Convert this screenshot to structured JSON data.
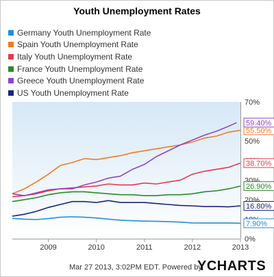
{
  "chart_data": {
    "type": "line",
    "title": "Youth Unemployment Rates",
    "xlabel": "",
    "ylabel": "",
    "x_ticks": [
      "2009",
      "2010",
      "2011",
      "2012",
      "2013"
    ],
    "x_range": [
      2008.25,
      2013.0
    ],
    "y_ticks": [
      "0%",
      "10%",
      "20%",
      "30%",
      "40%",
      "50%",
      "60%",
      "70%"
    ],
    "ylim": [
      0,
      70
    ],
    "grid": false,
    "legend": "top-left",
    "series": [
      {
        "name": "Germany Youth Unemployment Rate",
        "color": "#1f8fd6",
        "end_label": "7.90%",
        "points": [
          [
            2008.25,
            10.4
          ],
          [
            2008.5,
            10.0
          ],
          [
            2008.75,
            9.8
          ],
          [
            2009.0,
            10.3
          ],
          [
            2009.25,
            11.0
          ],
          [
            2009.5,
            11.2
          ],
          [
            2009.75,
            11.0
          ],
          [
            2010.0,
            10.6
          ],
          [
            2010.25,
            10.0
          ],
          [
            2010.5,
            9.5
          ],
          [
            2010.75,
            9.2
          ],
          [
            2011.0,
            9.0
          ],
          [
            2011.25,
            8.9
          ],
          [
            2011.5,
            8.7
          ],
          [
            2011.75,
            8.5
          ],
          [
            2012.0,
            8.1
          ],
          [
            2012.25,
            8.0
          ],
          [
            2012.5,
            8.0
          ],
          [
            2012.75,
            8.0
          ],
          [
            2013.0,
            7.9
          ]
        ]
      },
      {
        "name": "Spain Youth Unemployment Rate",
        "color": "#f47a1f",
        "end_label": "55.50%",
        "points": [
          [
            2008.25,
            23.0
          ],
          [
            2008.5,
            25.5
          ],
          [
            2008.75,
            29.0
          ],
          [
            2009.0,
            33.0
          ],
          [
            2009.25,
            37.5
          ],
          [
            2009.5,
            39.0
          ],
          [
            2009.75,
            41.0
          ],
          [
            2010.0,
            40.5
          ],
          [
            2010.25,
            41.5
          ],
          [
            2010.5,
            42.5
          ],
          [
            2010.75,
            44.0
          ],
          [
            2011.0,
            45.0
          ],
          [
            2011.25,
            46.0
          ],
          [
            2011.5,
            47.0
          ],
          [
            2011.75,
            48.0
          ],
          [
            2012.0,
            49.5
          ],
          [
            2012.25,
            51.5
          ],
          [
            2012.5,
            52.5
          ],
          [
            2012.75,
            54.5
          ],
          [
            2013.0,
            55.5
          ]
        ]
      },
      {
        "name": "Italy Youth Unemployment Rate",
        "color": "#e8384a",
        "end_label": "38.70%",
        "points": [
          [
            2008.25,
            21.5
          ],
          [
            2008.5,
            22.0
          ],
          [
            2008.75,
            23.0
          ],
          [
            2009.0,
            24.5
          ],
          [
            2009.25,
            25.5
          ],
          [
            2009.5,
            26.0
          ],
          [
            2009.75,
            26.5
          ],
          [
            2010.0,
            27.0
          ],
          [
            2010.25,
            28.0
          ],
          [
            2010.5,
            27.5
          ],
          [
            2010.75,
            27.5
          ],
          [
            2011.0,
            28.5
          ],
          [
            2011.25,
            28.0
          ],
          [
            2011.5,
            29.0
          ],
          [
            2011.75,
            30.0
          ],
          [
            2012.0,
            33.0
          ],
          [
            2012.25,
            34.5
          ],
          [
            2012.5,
            35.5
          ],
          [
            2012.75,
            36.5
          ],
          [
            2013.0,
            38.7
          ]
        ]
      },
      {
        "name": "France Youth Unemployment Rate",
        "color": "#2a8a2a",
        "end_label": "26.90%",
        "points": [
          [
            2008.25,
            19.0
          ],
          [
            2008.5,
            20.0
          ],
          [
            2008.75,
            21.0
          ],
          [
            2009.0,
            22.5
          ],
          [
            2009.25,
            23.5
          ],
          [
            2009.5,
            24.0
          ],
          [
            2009.75,
            24.0
          ],
          [
            2010.0,
            23.5
          ],
          [
            2010.25,
            23.0
          ],
          [
            2010.5,
            22.5
          ],
          [
            2010.75,
            22.5
          ],
          [
            2011.0,
            22.0
          ],
          [
            2011.25,
            22.0
          ],
          [
            2011.5,
            22.5
          ],
          [
            2011.75,
            22.5
          ],
          [
            2012.0,
            23.0
          ],
          [
            2012.25,
            24.0
          ],
          [
            2012.5,
            24.5
          ],
          [
            2012.75,
            25.5
          ],
          [
            2013.0,
            26.9
          ]
        ]
      },
      {
        "name": "Greece Youth Unemployment Rate",
        "color": "#8e44c8",
        "end_label": "59.40%",
        "points": [
          [
            2008.25,
            23.0
          ],
          [
            2008.5,
            22.0
          ],
          [
            2008.75,
            23.5
          ],
          [
            2009.0,
            25.0
          ],
          [
            2009.25,
            25.5
          ],
          [
            2009.5,
            25.5
          ],
          [
            2009.75,
            27.5
          ],
          [
            2010.0,
            29.0
          ],
          [
            2010.25,
            31.0
          ],
          [
            2010.5,
            32.0
          ],
          [
            2010.75,
            35.5
          ],
          [
            2011.0,
            38.0
          ],
          [
            2011.25,
            42.0
          ],
          [
            2011.5,
            45.0
          ],
          [
            2011.75,
            48.0
          ],
          [
            2012.0,
            50.5
          ],
          [
            2012.25,
            53.0
          ],
          [
            2012.5,
            55.0
          ],
          [
            2012.75,
            57.5
          ],
          [
            2012.92,
            59.4
          ]
        ]
      },
      {
        "name": "US Youth Unemployment Rate",
        "color": "#1a237e",
        "end_label": "16.80%",
        "points": [
          [
            2008.25,
            11.5
          ],
          [
            2008.5,
            12.5
          ],
          [
            2008.75,
            14.0
          ],
          [
            2009.0,
            16.0
          ],
          [
            2009.25,
            17.5
          ],
          [
            2009.5,
            19.0
          ],
          [
            2009.75,
            19.0
          ],
          [
            2010.0,
            18.5
          ],
          [
            2010.25,
            19.5
          ],
          [
            2010.5,
            18.5
          ],
          [
            2010.75,
            18.5
          ],
          [
            2011.0,
            18.5
          ],
          [
            2011.25,
            18.0
          ],
          [
            2011.5,
            17.5
          ],
          [
            2011.75,
            17.0
          ],
          [
            2012.0,
            16.8
          ],
          [
            2012.25,
            16.5
          ],
          [
            2012.5,
            16.5
          ],
          [
            2012.75,
            16.3
          ],
          [
            2013.0,
            16.8
          ]
        ]
      }
    ]
  },
  "footer": {
    "timestamp": "Mar 27 2013, 3:02PM EDT.  Powered by",
    "logo_y": "Y",
    "logo_rest": "CHARTS"
  }
}
